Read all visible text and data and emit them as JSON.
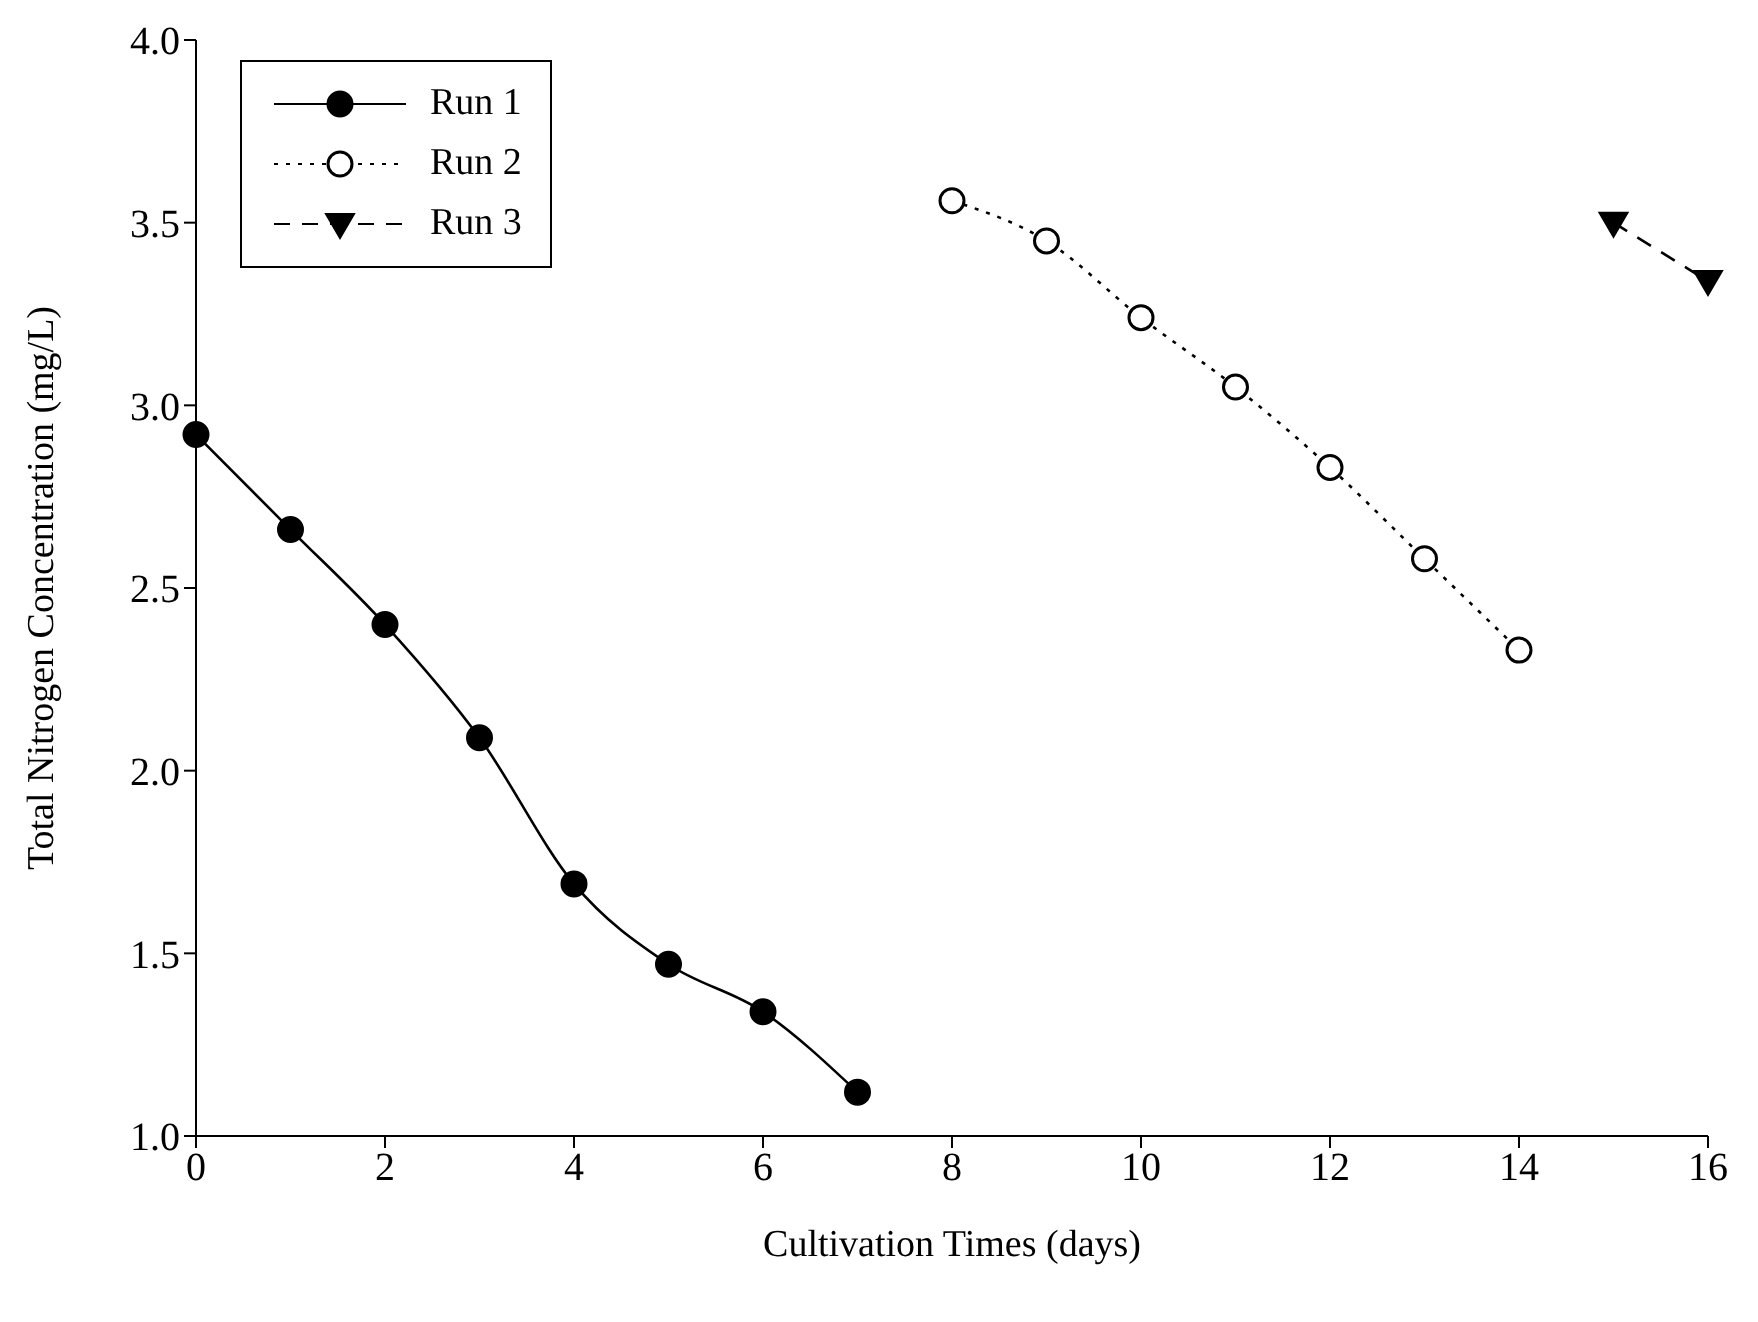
{
  "chart_data": {
    "type": "line",
    "xlabel": "Cultivation Times (days)",
    "ylabel": "Total Nitrogen Concentration (mg/L)",
    "xlim": [
      0,
      16
    ],
    "xticks": [
      0,
      2,
      4,
      6,
      8,
      10,
      12,
      14,
      16
    ],
    "ylim": [
      1.0,
      4.0
    ],
    "yticks": [
      {
        "value": 1.0,
        "label": "1.0"
      },
      {
        "value": 1.5,
        "label": "1.5"
      },
      {
        "value": 2.0,
        "label": "2.0"
      },
      {
        "value": 2.5,
        "label": "2.5"
      },
      {
        "value": 3.0,
        "label": "3.0"
      },
      {
        "value": 3.5,
        "label": "3.5"
      },
      {
        "value": 4.0,
        "label": "4.0"
      }
    ],
    "grid": false,
    "legend": "top left",
    "series": [
      {
        "name": "Run 1",
        "color": "#000000",
        "marker": "circle",
        "line_style": "solid",
        "x": [
          0,
          1,
          2,
          3,
          4,
          5,
          6,
          7
        ],
        "values": [
          2.92,
          2.66,
          2.4,
          2.09,
          1.69,
          1.47,
          1.34,
          1.12
        ]
      },
      {
        "name": "Run 2",
        "color": "#000000",
        "marker": "circle",
        "line_style": "dotted",
        "x": [
          8,
          9,
          10,
          11,
          12,
          13,
          14
        ],
        "values": [
          3.56,
          3.45,
          3.24,
          3.05,
          2.83,
          2.58,
          2.33
        ]
      },
      {
        "name": "Run 3",
        "color": "#000000",
        "marker": "triangle",
        "line_style": "dashed",
        "x": [
          15,
          16
        ],
        "values": [
          3.5,
          3.34
        ]
      }
    ]
  }
}
